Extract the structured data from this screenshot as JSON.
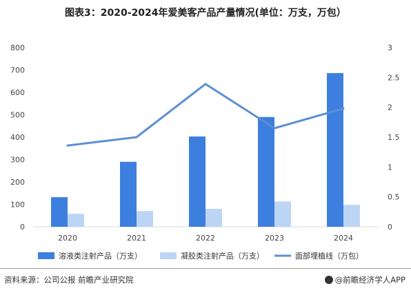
{
  "title": "图表3：2020-2024年爱美客产品产量情况(单位：万支，万包）",
  "source": "资料来源：公司公报 前瞻产业研究院",
  "brand": "@前瞻经济学人APP",
  "watermark": "前瞻产业研究院",
  "chart_data": {
    "type": "bar",
    "categories": [
      "2020",
      "2021",
      "2022",
      "2023",
      "2024"
    ],
    "y_left": {
      "min": 0,
      "max": 800,
      "ticks": [
        "0",
        "100",
        "200",
        "300",
        "400",
        "500",
        "600",
        "700",
        "800"
      ]
    },
    "y_right": {
      "min": 0,
      "max": 3,
      "ticks": [
        "0",
        "0.5",
        "1",
        "1.5",
        "2",
        "2.5",
        "3"
      ]
    },
    "series": [
      {
        "name": "溶液类注射产品（万支）",
        "type": "bar",
        "axis": "left",
        "color": "#3d7fde",
        "values": [
          132,
          290,
          403,
          490,
          686
        ]
      },
      {
        "name": "凝胶类注射产品（万支）",
        "type": "bar",
        "axis": "left",
        "color": "#bdd5f5",
        "values": [
          58,
          70,
          80,
          113,
          98
        ]
      },
      {
        "name": "面部埋植线（万包）",
        "type": "line",
        "axis": "right",
        "color": "#5b8fd4",
        "values": [
          1.36,
          1.5,
          2.39,
          1.65,
          1.98
        ]
      }
    ],
    "grid": false,
    "legend_position": "bottom"
  }
}
